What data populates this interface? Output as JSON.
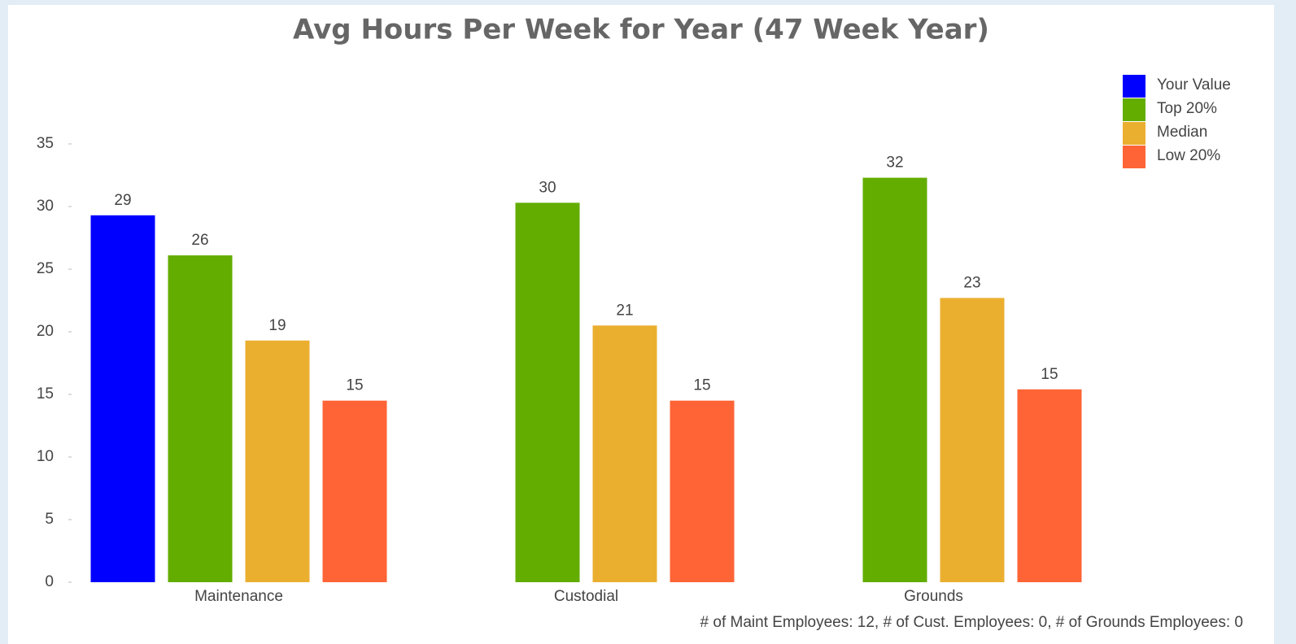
{
  "chart_data": {
    "type": "bar",
    "title": "Avg Hours Per Week for Year (47 Week Year)",
    "categories": [
      "Maintenance",
      "Custodial",
      "Grounds"
    ],
    "series": [
      {
        "name": "Your Value",
        "color": "#0000ff",
        "values": [
          29.3,
          null,
          null
        ],
        "value_labels": [
          "29",
          null,
          null
        ]
      },
      {
        "name": "Top 20%",
        "color": "#63ad00",
        "values": [
          26.1,
          30.3,
          32.3
        ],
        "value_labels": [
          "26",
          "30",
          "32"
        ]
      },
      {
        "name": "Median",
        "color": "#ebaf30",
        "values": [
          19.3,
          20.5,
          22.7
        ],
        "value_labels": [
          "19",
          "21",
          "23"
        ]
      },
      {
        "name": "Low 20%",
        "color": "#ff6436",
        "values": [
          14.5,
          14.5,
          15.4
        ],
        "value_labels": [
          "15",
          "15",
          "15"
        ]
      }
    ],
    "ylim": [
      0,
      35
    ],
    "yticks": [
      0,
      5,
      10,
      15,
      20,
      25,
      30,
      35
    ],
    "legend": "top-right",
    "annotation": "# of Maint Employees: 12, # of Cust. Employees: 0, # of Grounds Employees: 0"
  }
}
